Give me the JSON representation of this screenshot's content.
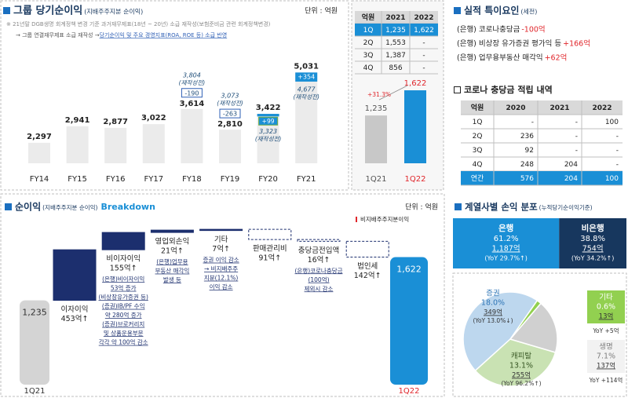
{
  "chart_data": [
    {
      "type": "bar",
      "title": "그룹 당기순이익",
      "subtitle": "(지배주주지분 순이익)",
      "unit": "단위 : 억원",
      "notes": [
        "※ 21년말 DGB생명 회계정책 변경 기준 과거재무제표(18년 ~ 20년) 소급 재작성(보험준비금 관련 회계정책변경)"
      ],
      "note_line": [
        "→ 그룹 연결재무제표 소급 재작성 → ",
        "당기순이익 및 주요 경영지표(ROA, ROE 등) 소급 반영"
      ],
      "categories": [
        "FY14",
        "FY15",
        "FY16",
        "FY17",
        "FY18",
        "FY19",
        "FY20",
        "FY21"
      ],
      "values": [
        2297,
        2941,
        2877,
        3022,
        3614,
        2810,
        3422,
        5031
      ],
      "value_labels": [
        "2,297",
        "2,941",
        "2,877",
        "3,022",
        "3,614",
        "2,810",
        "3,422",
        "5,031"
      ],
      "color": "#ebebeb",
      "ylim": [
        1500,
        5500
      ],
      "before": {
        "label": "(재작성전)",
        "values": [
          null,
          null,
          null,
          null,
          3804,
          3073,
          3323,
          4677
        ],
        "value_labels": [
          null,
          null,
          null,
          null,
          "3,804",
          "3,073",
          "3,323",
          "4,677"
        ]
      },
      "adjustments": {
        "values": [
          null,
          null,
          null,
          null,
          -190,
          -263,
          99,
          354
        ],
        "value_labels": [
          null,
          null,
          null,
          null,
          "-190",
          "-263",
          "+99",
          "+354"
        ],
        "color": "#1a8fd6"
      }
    },
    {
      "type": "bar",
      "categories": [
        "1Q21",
        "1Q22"
      ],
      "values": [
        1235,
        1622
      ],
      "value_labels": [
        "1,235",
        "1,622"
      ],
      "colors": [
        "#c8c8c8",
        "#1a8fd6"
      ],
      "label_colors": [
        "#555555",
        "#e0262b"
      ],
      "ylim": [
        500,
        1900
      ],
      "growth_label": "+31.3%"
    },
    {
      "type": "waterfall",
      "title": "순이익",
      "subtitle": "(지배주주지분 순이익)",
      "title_en": "Breakdown",
      "unit": "단위 : 억원",
      "legend": "비지배주주지분이익",
      "ylim": [
        480,
        1900
      ],
      "start": {
        "category": "1Q21",
        "value": 1235,
        "value_label": "1,235",
        "color": "#d4d4d4"
      },
      "end": {
        "category": "1Q22",
        "value": 1622,
        "value_label": "1,622",
        "color": "#1a8fd6"
      },
      "categories": [
        "이자이익",
        "비이자이익",
        "영업외손익",
        "기타",
        "판매관리비",
        "충당금전입액",
        "법인세"
      ],
      "values": [
        453,
        155,
        21,
        7,
        -91,
        -16,
        -142
      ],
      "value_labels": [
        "453억↑",
        "155억↑",
        "21억↑",
        "7억↑",
        "91억↑",
        "16억↑",
        "142억↑"
      ],
      "color": "#1c2f6e",
      "notes": {
        "비이자이익": [
          "(은행)비이자이익",
          "53억 증가",
          "(비상장유가증권 등)",
          "(증권)IB/PF 수익",
          "약 280억 증가",
          "(증권)브로커리지",
          "및 상품운용부문",
          "각각 약 100억 감소"
        ],
        "영업외손익": [
          "(은행)업무용",
          "부동산 매각익",
          "발생 등"
        ],
        "기타": [
          "증권 이익 감소",
          "→ 비지배주주",
          "지분(12.1%)",
          "이익 감소"
        ],
        "충당금전입액": [
          "(은행)코로나충당금",
          "(100억)",
          "제외시 감소"
        ]
      }
    },
    {
      "type": "pie",
      "title": "계열사별 손익 분포",
      "subtitle": "(누적당기순이익기준)",
      "groups": [
        {
          "name": "은행",
          "share": 61.2,
          "share_label": "61.2%",
          "amount": "1,187억",
          "yoy": "(YoY 29.7%↑)",
          "color": "#1a8fd6"
        },
        {
          "name": "비은행",
          "share": 38.8,
          "share_label": "38.8%",
          "amount": "754억",
          "yoy": "(YoY 34.2%↑)",
          "color": "#17375e"
        }
      ],
      "categories": [
        "증권",
        "캐피탈",
        "생명",
        "기타"
      ],
      "values": [
        18.0,
        13.1,
        7.1,
        0.6
      ],
      "value_labels": [
        "18.0%",
        "13.1%",
        "7.1%",
        "0.6%"
      ],
      "amounts": [
        "349억",
        "255억",
        "137억",
        "13억"
      ],
      "yoy": [
        "(YoY 13.0%↓)",
        "(YoY 96.2%↑)",
        "YoY +114억",
        "YoY +5억"
      ],
      "colors": [
        "#bdd7ee",
        "#c9e2b3",
        "#d0d0d0",
        "#92d050"
      ]
    }
  ],
  "factors": {
    "title": "실적 특이요인",
    "subtitle": "(세전)",
    "items": [
      {
        "label": "(은행) 코로나충당금",
        "amount": "-100억"
      },
      {
        "label": "(은행) 비상장 유가증권 평가익 등",
        "amount": "+166억"
      },
      {
        "label": "(은행) 업무용부동산 매각익",
        "amount": "+62억"
      }
    ]
  },
  "tables": [
    {
      "header": [
        "억원",
        "2021",
        "2022"
      ],
      "rows": [
        [
          "1Q",
          "1,235",
          "1,622"
        ],
        [
          "2Q",
          "1,553",
          "-"
        ],
        [
          "3Q",
          "1,387",
          "-"
        ],
        [
          "4Q",
          "856",
          "-"
        ]
      ]
    },
    {
      "title": "코로나 충당금 적립 내역",
      "header": [
        "억원",
        "2020",
        "2021",
        "2022"
      ],
      "rows": [
        [
          "1Q",
          "-",
          "-",
          "100"
        ],
        [
          "2Q",
          "236",
          "-",
          "-"
        ],
        [
          "3Q",
          "92",
          "-",
          "-"
        ],
        [
          "4Q",
          "248",
          "204",
          "-"
        ],
        [
          "연간",
          "576",
          "204",
          "100"
        ]
      ]
    }
  ]
}
